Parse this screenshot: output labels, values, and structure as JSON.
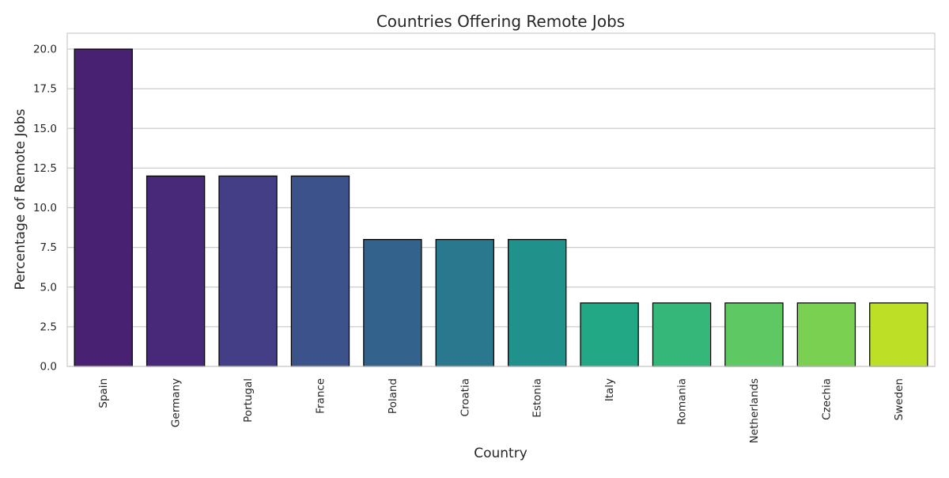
{
  "chart_data": {
    "type": "bar",
    "title": "Countries Offering Remote Jobs",
    "xlabel": "Country",
    "ylabel": "Percentage of Remote Jobs",
    "categories": [
      "Spain",
      "Germany",
      "Portugal",
      "France",
      "Poland",
      "Croatia",
      "Estonia",
      "Italy",
      "Romania",
      "Netherlands",
      "Czechia",
      "Sweden"
    ],
    "values": [
      20,
      12,
      12,
      12,
      8,
      8,
      8,
      4,
      4,
      4,
      4,
      4
    ],
    "ylim": [
      0,
      21
    ],
    "yticks": [
      "0.0",
      "2.5",
      "5.0",
      "7.5",
      "10.0",
      "12.5",
      "15.0",
      "17.5",
      "20.0"
    ],
    "grid": "horizontal",
    "x_tick_rotation": "vertical",
    "bar_edge_color": "#000000",
    "colors": [
      "#482173",
      "#482878",
      "#433e85",
      "#3b528b",
      "#33638d",
      "#2a788e",
      "#21918c",
      "#22a884",
      "#35b779",
      "#5ec962",
      "#7ad151",
      "#bddf26"
    ]
  }
}
